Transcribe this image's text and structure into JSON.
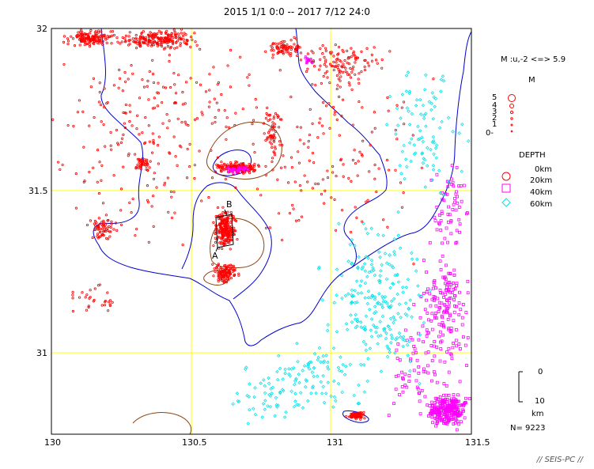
{
  "title": "2015 1/1 0:0 -- 2017 7/12 24:0",
  "axes": {
    "lon_ticks": [
      "130",
      "130.5",
      "131",
      "131.5"
    ],
    "lat_ticks": [
      "32",
      "31.5",
      "31"
    ]
  },
  "cross_section": {
    "label_a": "A",
    "label_b": "B"
  },
  "legend": {
    "magnitude_range": "M :u,-2 <=> 5.9",
    "m_header": "M",
    "m_levels": [
      "5",
      "4",
      "3",
      "2",
      "1",
      "0-"
    ],
    "depth_header": "DEPTH",
    "depths": [
      "0km",
      "20km",
      "40km",
      "60km"
    ],
    "scale_top": "0",
    "scale_bottom": "10",
    "scale_unit": "km",
    "count": "N= 9223"
  },
  "credit": "// SEIS-PC //",
  "colors": {
    "shallow": "#ff0000",
    "mid": "#ff00ff",
    "deep": "#00e5ee",
    "coast": "#0000cc",
    "grid": "#ffff00",
    "caldera": "#8b4513"
  }
}
